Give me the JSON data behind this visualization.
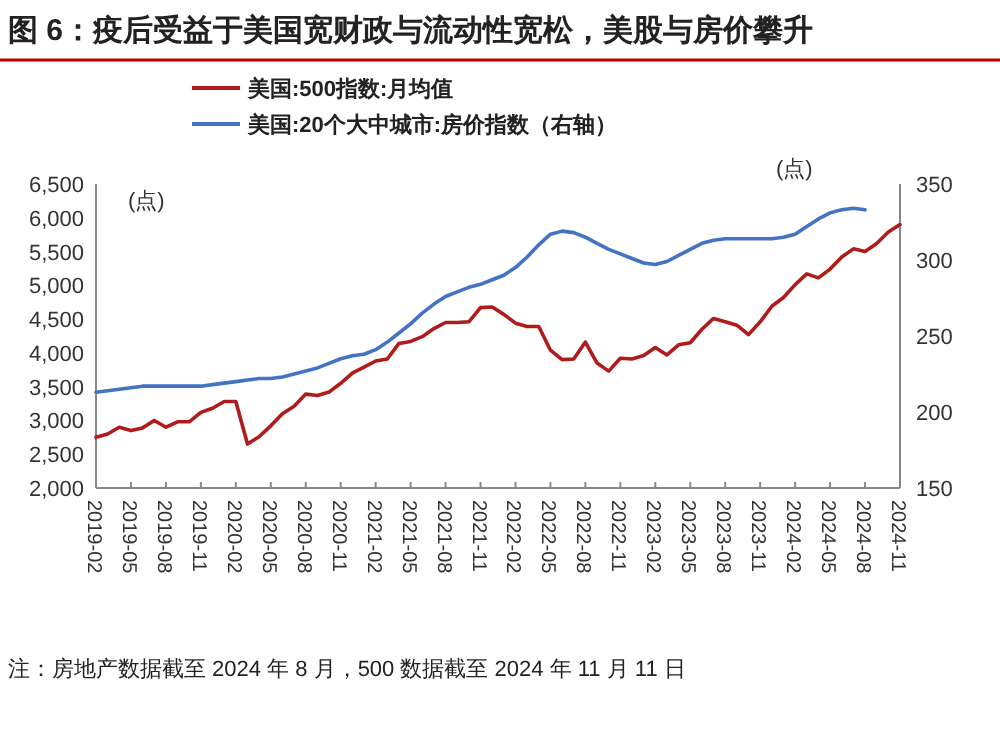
{
  "chart_data": {
    "type": "line",
    "title": "图 6：疫后受益于美国宽财政与流动性宽松，美股与房价攀升",
    "ylabel": "(点)",
    "y2label": "(点)",
    "annotations": [
      "注：房地产数据截至 2024 年 8 月，500 数据截至 2024 年 11 月 11 日"
    ],
    "legend": "top",
    "grid": false,
    "marker": "none",
    "line_style": "solid",
    "categories": [
      "2019-02",
      null,
      null,
      "2019-05",
      null,
      null,
      "2019-08",
      null,
      null,
      "2019-11",
      null,
      null,
      "2020-02",
      null,
      null,
      "2020-05",
      null,
      null,
      "2020-08",
      null,
      null,
      "2020-11",
      null,
      null,
      "2021-02",
      null,
      null,
      "2021-05",
      null,
      null,
      "2021-08",
      null,
      null,
      "2021-11",
      null,
      null,
      "2022-02",
      null,
      null,
      "2022-05",
      null,
      null,
      "2022-08",
      null,
      null,
      "2022-11",
      null,
      null,
      "2023-02",
      null,
      null,
      "2023-05",
      null,
      null,
      "2023-08",
      null,
      null,
      "2023-11",
      null,
      null,
      "2024-02",
      null,
      null,
      "2024-05",
      null,
      null,
      "2024-08",
      null,
      null,
      "2024-11"
    ],
    "ylim": [
      2000,
      6500
    ],
    "yticks": [
      {
        "value": 2000,
        "label": "2,000"
      },
      {
        "value": 2500,
        "label": "2,500"
      },
      {
        "value": 3000,
        "label": "3,000"
      },
      {
        "value": 3500,
        "label": "3,500"
      },
      {
        "value": 4000,
        "label": "4,000"
      },
      {
        "value": 4500,
        "label": "4,500"
      },
      {
        "value": 5000,
        "label": "5,000"
      },
      {
        "value": 5500,
        "label": "5,500"
      },
      {
        "value": 6000,
        "label": "6,000"
      },
      {
        "value": 6500,
        "label": "6,500"
      }
    ],
    "y2lim": [
      150,
      350
    ],
    "y2ticks": [
      150,
      200,
      250,
      300,
      350
    ],
    "series": [
      {
        "name": "美国:500指数:月均值",
        "color": "#b01c1c",
        "values": [
          2750,
          2800,
          2900,
          2850,
          2890,
          3000,
          2900,
          2980,
          2980,
          3120,
          3180,
          3280,
          3280,
          2650,
          2760,
          2920,
          3100,
          3210,
          3390,
          3370,
          3420,
          3550,
          3700,
          3790,
          3880,
          3910,
          4140,
          4170,
          4240,
          4360,
          4450,
          4450,
          4460,
          4670,
          4680,
          4570,
          4440,
          4390,
          4390,
          4040,
          3900,
          3910,
          4160,
          3850,
          3730,
          3920,
          3910,
          3960,
          4080,
          3970,
          4120,
          4150,
          4350,
          4510,
          4460,
          4410,
          4270,
          4460,
          4690,
          4820,
          5010,
          5170,
          5110,
          5240,
          5420,
          5540,
          5500,
          5620,
          5790,
          5900
        ]
      },
      {
        "name": "美国:20个大中城市:房价指数（右轴）",
        "color": "#4472c4",
        "axis": "y2",
        "values": [
          213,
          214,
          215,
          216,
          217,
          217,
          217,
          217,
          217,
          217,
          218,
          219,
          220,
          221,
          222,
          222,
          223,
          225,
          227,
          229,
          232,
          235,
          237,
          238,
          241,
          246,
          252,
          258,
          265,
          271,
          276,
          279,
          282,
          284,
          287,
          290,
          295,
          302,
          310,
          317,
          319,
          318,
          315,
          311,
          307,
          304,
          301,
          298,
          297,
          299,
          303,
          307,
          311,
          313,
          314,
          314,
          314,
          314,
          314,
          315,
          317,
          322,
          327,
          331,
          333,
          334,
          333,
          null,
          null,
          null
        ]
      }
    ]
  }
}
